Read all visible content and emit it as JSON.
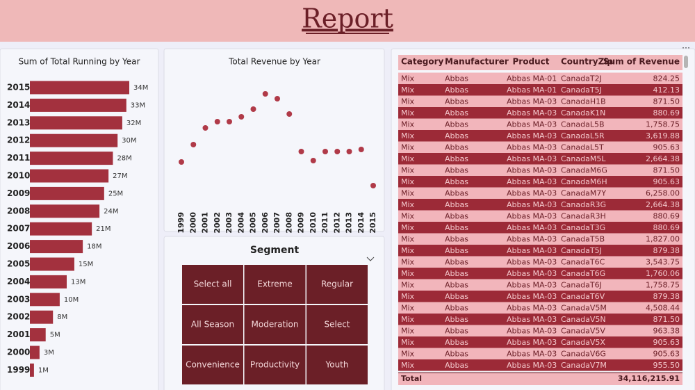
{
  "header": {
    "title": "Report"
  },
  "chart_data": [
    {
      "type": "hbar",
      "title": "Sum of Total Running by Year",
      "categories": [
        "2015",
        "2014",
        "2013",
        "2012",
        "2011",
        "2010",
        "2009",
        "2008",
        "2007",
        "2006",
        "2005",
        "2004",
        "2003",
        "2002",
        "2001",
        "2000",
        "1999"
      ],
      "values": [
        34000000,
        33000000,
        31600000,
        30000000,
        28400000,
        26900000,
        25400000,
        23800000,
        21200000,
        18100000,
        15200000,
        12600000,
        10200000,
        7900000,
        5400000,
        3300000,
        1400000
      ],
      "value_labels": [
        "34M",
        "33M",
        "32M",
        "30M",
        "28M",
        "27M",
        "25M",
        "24M",
        "21M",
        "18M",
        "15M",
        "13M",
        "10M",
        "8M",
        "5M",
        "3M",
        "1M"
      ],
      "color": "#a3313e",
      "xlim": [
        0,
        34000000
      ]
    },
    {
      "type": "scatter",
      "title": "Total Revenue by Year",
      "categories": [
        "1999",
        "2000",
        "2001",
        "2002",
        "2003",
        "2004",
        "2005",
        "2006",
        "2007",
        "2008",
        "2009",
        "2010",
        "2011",
        "2012",
        "2013",
        "2014",
        "2015"
      ],
      "values": [
        1400000,
        1900000,
        2380000,
        2560000,
        2560000,
        2700000,
        2920000,
        3360000,
        3220000,
        2780000,
        1700000,
        1440000,
        1700000,
        1700000,
        1700000,
        1760000,
        720000
      ],
      "color": "#b03a48",
      "ylim": [
        0,
        4000000
      ]
    }
  ],
  "slicer": {
    "title": "Segment",
    "items": [
      "Select all",
      "Extreme",
      "Regular",
      "All Season",
      "Moderation",
      "Select",
      "Convenience",
      "Productivity",
      "Youth"
    ]
  },
  "table": {
    "columns": [
      "Category",
      "Manufacturer",
      "Product",
      "CountryZip",
      "Sum of Revenue"
    ],
    "rows": [
      [
        "Mix",
        "Abbas",
        "Abbas MA-01",
        "CanadaT2J",
        "824.25"
      ],
      [
        "Mix",
        "Abbas",
        "Abbas MA-01",
        "CanadaT5J",
        "412.13"
      ],
      [
        "Mix",
        "Abbas",
        "Abbas MA-03",
        "CanadaH1B",
        "871.50"
      ],
      [
        "Mix",
        "Abbas",
        "Abbas MA-03",
        "CanadaK1N",
        "880.69"
      ],
      [
        "Mix",
        "Abbas",
        "Abbas MA-03",
        "CanadaL5B",
        "1,758.75"
      ],
      [
        "Mix",
        "Abbas",
        "Abbas MA-03",
        "CanadaL5R",
        "3,619.88"
      ],
      [
        "Mix",
        "Abbas",
        "Abbas MA-03",
        "CanadaL5T",
        "905.63"
      ],
      [
        "Mix",
        "Abbas",
        "Abbas MA-03",
        "CanadaM5L",
        "2,664.38"
      ],
      [
        "Mix",
        "Abbas",
        "Abbas MA-03",
        "CanadaM6G",
        "871.50"
      ],
      [
        "Mix",
        "Abbas",
        "Abbas MA-03",
        "CanadaM6H",
        "905.63"
      ],
      [
        "Mix",
        "Abbas",
        "Abbas MA-03",
        "CanadaM7Y",
        "6,258.00"
      ],
      [
        "Mix",
        "Abbas",
        "Abbas MA-03",
        "CanadaR3G",
        "2,664.38"
      ],
      [
        "Mix",
        "Abbas",
        "Abbas MA-03",
        "CanadaR3H",
        "880.69"
      ],
      [
        "Mix",
        "Abbas",
        "Abbas MA-03",
        "CanadaT3G",
        "880.69"
      ],
      [
        "Mix",
        "Abbas",
        "Abbas MA-03",
        "CanadaT5B",
        "1,827.00"
      ],
      [
        "Mix",
        "Abbas",
        "Abbas MA-03",
        "CanadaT5J",
        "879.38"
      ],
      [
        "Mix",
        "Abbas",
        "Abbas MA-03",
        "CanadaT6C",
        "3,543.75"
      ],
      [
        "Mix",
        "Abbas",
        "Abbas MA-03",
        "CanadaT6G",
        "1,760.06"
      ],
      [
        "Mix",
        "Abbas",
        "Abbas MA-03",
        "CanadaT6J",
        "1,758.75"
      ],
      [
        "Mix",
        "Abbas",
        "Abbas MA-03",
        "CanadaT6V",
        "879.38"
      ],
      [
        "Mix",
        "Abbas",
        "Abbas MA-03",
        "CanadaV5M",
        "4,508.44"
      ],
      [
        "Mix",
        "Abbas",
        "Abbas MA-03",
        "CanadaV5N",
        "871.50"
      ],
      [
        "Mix",
        "Abbas",
        "Abbas MA-03",
        "CanadaV5V",
        "963.38"
      ],
      [
        "Mix",
        "Abbas",
        "Abbas MA-03",
        "CanadaV5X",
        "905.63"
      ],
      [
        "Mix",
        "Abbas",
        "Abbas MA-03",
        "CanadaV6G",
        "905.63"
      ],
      [
        "Mix",
        "Abbas",
        "Abbas MA-03",
        "CanadaV7M",
        "955.50"
      ]
    ],
    "total": {
      "label": "Total",
      "value": "34,116,215.91"
    }
  }
}
